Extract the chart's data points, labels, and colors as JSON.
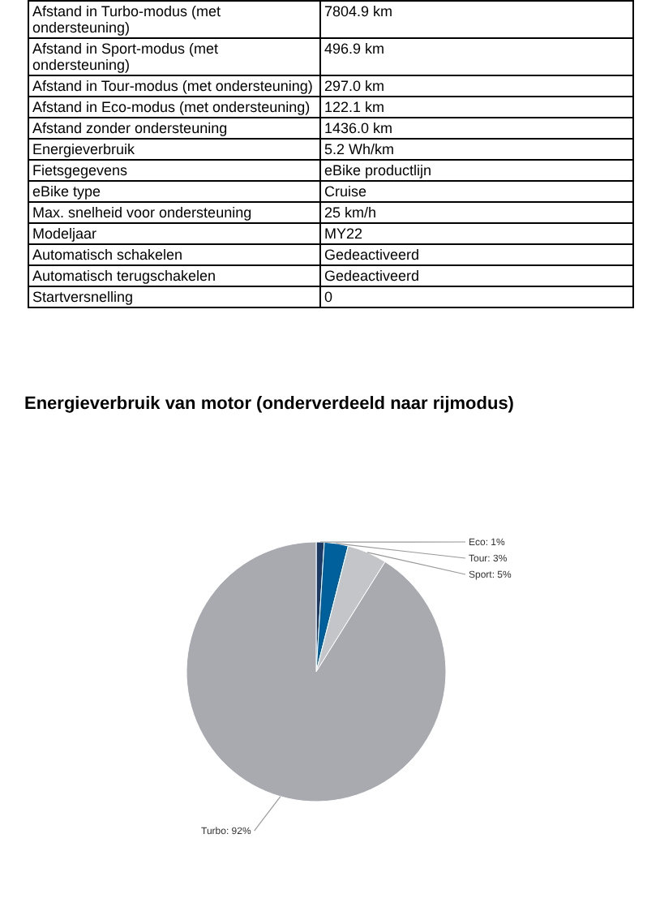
{
  "chart_data": {
    "type": "pie",
    "title": "Energieverbruik van motor (onderverdeeld naar rijmodus)",
    "categories": [
      "Eco",
      "Tour",
      "Sport",
      "Turbo"
    ],
    "values": [
      1,
      3,
      5,
      92
    ],
    "value_labels": [
      "1%",
      "3%",
      "5%",
      "92%"
    ],
    "colors": [
      "#1b3a66",
      "#00609c",
      "#c3c5c9",
      "#a8aab0"
    ],
    "annotations": [
      "Afstand in Turbo-modus (met ondersteuning)",
      "7804.9 km",
      "Afstand in Sport-modus (met ondersteuning)",
      "496.9 km",
      "Afstand in Tour-modus (met ondersteuning)",
      "297.0 km",
      "Afstand in Eco-modus (met ondersteuning)",
      "122.1 km",
      "Afstand zonder ondersteuning",
      "1436.0 km",
      "Energieverbruik",
      "5.2 Wh/km",
      "Fietsgegevens",
      "eBike productlijn",
      "eBike type",
      "Cruise",
      "Max. snelheid voor ondersteuning",
      "25 km/h",
      "Modeljaar",
      "MY22",
      "Automatisch schakelen",
      "Gedeactiveerd",
      "Automatisch terugschakelen",
      "Gedeactiveerd",
      "Startversnelling",
      "0"
    ]
  }
}
